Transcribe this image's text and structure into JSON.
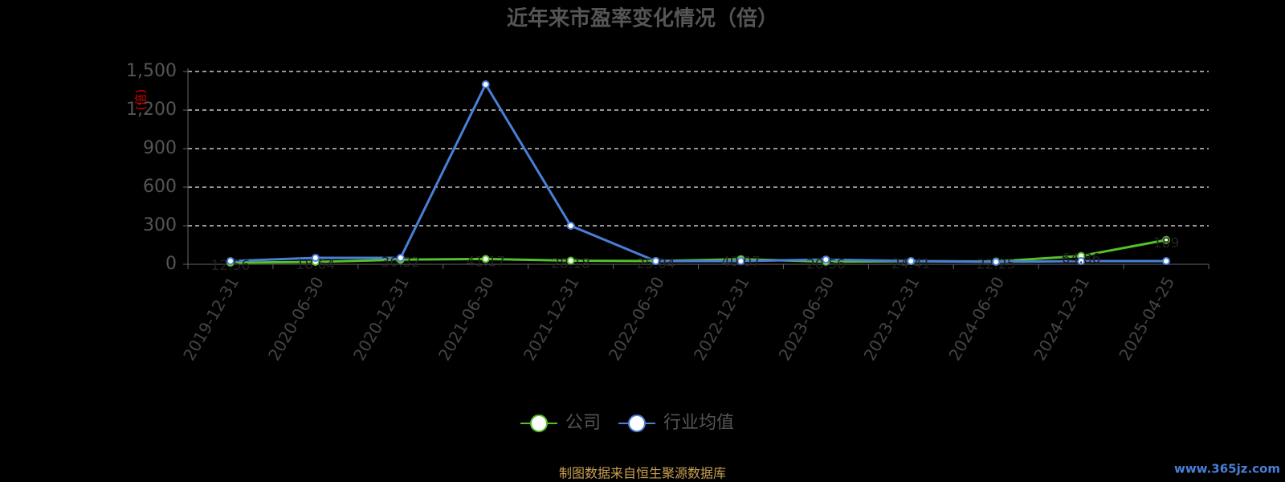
{
  "chart_data": {
    "type": "line",
    "title": "近年来市盈率变化情况（倍）",
    "y_label": "(倍)",
    "categories": [
      "2019-12-31",
      "2020-06-30",
      "2020-12-31",
      "2021-06-30",
      "2021-12-31",
      "2022-06-30",
      "2022-12-31",
      "2023-06-30",
      "2023-12-31",
      "2024-06-30",
      "2024-12-31",
      "2025-04-25"
    ],
    "series": [
      {
        "name": "公司",
        "color": "#55c02a",
        "values": [
          12.56,
          18.64,
          36.32,
          41.17,
          28.18,
          25.04,
          40.07,
          20.56,
          24.41,
          22.25,
          64.86,
          189
        ]
      },
      {
        "name": "行业均值",
        "color": "#4a7fd8",
        "values": [
          25,
          50,
          50,
          1400,
          300,
          25,
          25,
          37,
          25,
          19,
          25,
          25
        ]
      }
    ],
    "ylim": [
      0,
      1500
    ],
    "yticks": [
      0,
      300,
      600,
      900,
      {
        "value": 1200,
        "label": "1,200"
      },
      {
        "value": 1500,
        "label": "1,500"
      }
    ],
    "grid": true,
    "legend": "bottom",
    "source": "制图数据来自恒生聚源数据库",
    "watermark": "www.365jz.com"
  }
}
